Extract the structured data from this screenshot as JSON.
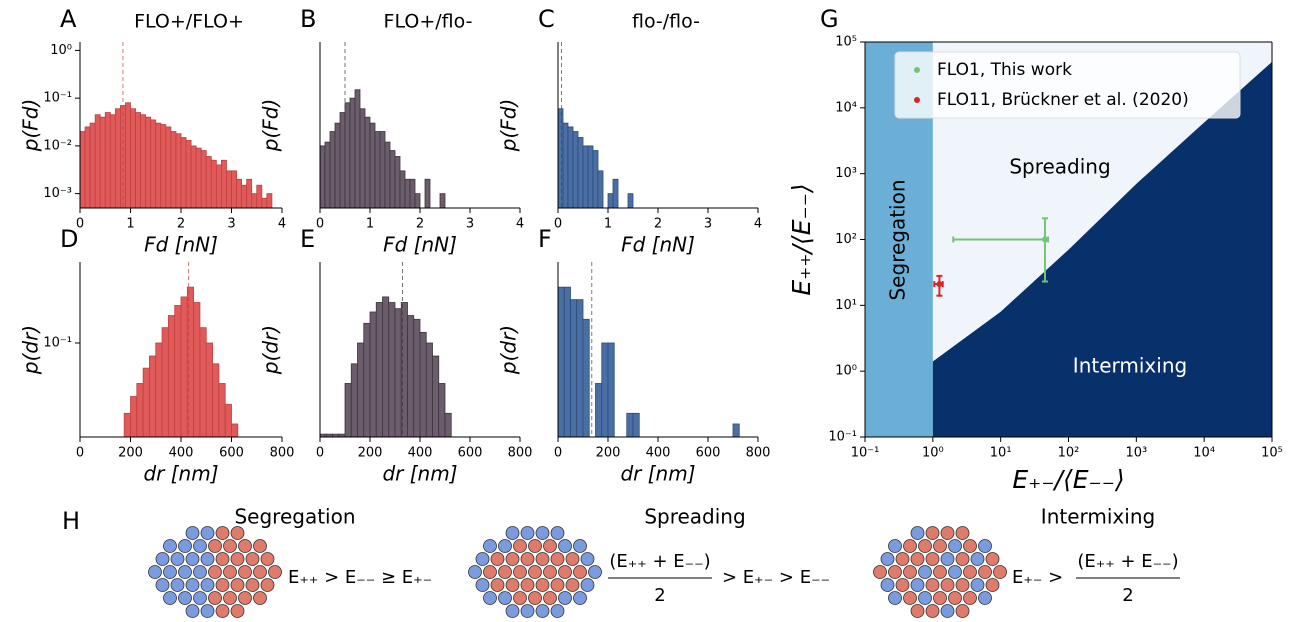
{
  "chart_data": [
    {
      "type": "histogram",
      "panel_label": "A",
      "title": "FLO+/FLO+",
      "xlabel": "Fd [nN]",
      "ylabel": "p(Fd)",
      "color": "#e05a5a",
      "edge": "#c04040",
      "log_y": true,
      "bins": [
        0,
        0.1,
        0.2,
        0.3,
        0.4,
        0.5,
        0.6,
        0.7,
        0.8,
        0.9,
        1,
        1.1,
        1.2,
        1.3,
        1.4,
        1.5,
        1.6,
        1.7,
        1.8,
        1.9,
        2,
        2.1,
        2.2,
        2.3,
        2.4,
        2.5,
        2.6,
        2.7,
        2.8,
        2.9,
        3,
        3.1,
        3.2,
        3.3,
        3.4,
        3.5,
        3.6,
        3.7,
        3.8
      ],
      "values": [
        0.02,
        0.025,
        0.03,
        0.045,
        0.04,
        0.05,
        0.045,
        0.06,
        0.07,
        0.08,
        0.06,
        0.05,
        0.045,
        0.04,
        0.035,
        0.03,
        0.028,
        0.025,
        0.02,
        0.018,
        0.015,
        0.013,
        0.01,
        0.009,
        0.008,
        0.006,
        0.005,
        0.004,
        0.005,
        0.003,
        0.003,
        0.002,
        0.0015,
        0.002,
        0.001,
        0.0015,
        0.0008,
        0.001
      ],
      "reference_line": 0.85,
      "xlim": [
        0,
        4
      ],
      "xticks": [
        0,
        1,
        2,
        3,
        4
      ],
      "ylim": [
        0.0005,
        1.5
      ],
      "yticks": [
        {
          "value": 0.001,
          "label": "10⁻³"
        },
        {
          "value": 0.01,
          "label": "10⁻²"
        },
        {
          "value": 0.1,
          "label": "10⁻¹"
        },
        {
          "value": 1,
          "label": "10⁰"
        }
      ]
    },
    {
      "type": "histogram",
      "panel_label": "B",
      "title": "FLO+/flo-",
      "xlabel": "Fd [nN]",
      "ylabel": "p(Fd)",
      "color": "#6b5d6b",
      "edge": "#3e343e",
      "log_y": true,
      "bins": [
        0,
        0.1,
        0.2,
        0.3,
        0.4,
        0.5,
        0.6,
        0.7,
        0.8,
        0.9,
        1,
        1.1,
        1.2,
        1.3,
        1.4,
        1.5,
        1.6,
        1.7,
        1.8,
        1.9,
        2,
        2.1,
        2.2,
        2.3,
        2.4,
        2.5
      ],
      "values": [
        0.01,
        0.012,
        0.02,
        0.03,
        0.05,
        0.08,
        0.1,
        0.15,
        0.06,
        0.04,
        0.03,
        0.02,
        0.02,
        0.012,
        0.008,
        0.006,
        0.003,
        0.002,
        0.002,
        0.001,
        0,
        0.002,
        0,
        0,
        0.001
      ],
      "reference_line": 0.5,
      "xlim": [
        0,
        4
      ],
      "xticks": [
        0,
        1,
        2,
        3,
        4
      ],
      "ylim": [
        0.0005,
        1.5
      ]
    },
    {
      "type": "histogram",
      "panel_label": "C",
      "title": "flo-/flo-",
      "xlabel": "Fd [nN]",
      "ylabel": "p(Fd)",
      "color": "#4a6fa5",
      "edge": "#2c4a75",
      "log_y": true,
      "bins": [
        0,
        0.1,
        0.2,
        0.3,
        0.4,
        0.5,
        0.6,
        0.7,
        0.8,
        0.9,
        1,
        1.1,
        1.2,
        1.3,
        1.4,
        1.5
      ],
      "values": [
        0.06,
        0.03,
        0.025,
        0.02,
        0.015,
        0.01,
        0.01,
        0.008,
        0.003,
        0,
        0.001,
        0.002,
        0,
        0,
        0.001
      ],
      "reference_line": 0.07,
      "xlim": [
        0,
        4
      ],
      "xticks": [
        0,
        1,
        2,
        3,
        4
      ],
      "ylim": [
        0.0005,
        1.5
      ]
    },
    {
      "type": "histogram",
      "panel_label": "D",
      "xlabel": "dr [nm]",
      "ylabel": "p(dr)",
      "color": "#e05a5a",
      "edge": "#c04040",
      "log_y": true,
      "bins": [
        175,
        200,
        225,
        250,
        275,
        300,
        325,
        350,
        375,
        400,
        425,
        450,
        475,
        500,
        525,
        550,
        575,
        600,
        625
      ],
      "values": [
        0.03,
        0.04,
        0.05,
        0.065,
        0.08,
        0.1,
        0.13,
        0.16,
        0.19,
        0.22,
        0.26,
        0.2,
        0.13,
        0.1,
        0.07,
        0.05,
        0.035,
        0.025
      ],
      "reference_line": 430,
      "xlim": [
        0,
        800
      ],
      "xticks": [
        0,
        200,
        400,
        600,
        800
      ],
      "ylim": [
        0.02,
        0.4
      ],
      "yticks": [
        {
          "value": 0.1,
          "label": "10⁻¹"
        }
      ]
    },
    {
      "type": "histogram",
      "panel_label": "E",
      "xlabel": "dr [nm]",
      "ylabel": "p(dr)",
      "color": "#6b5d6b",
      "edge": "#3e343e",
      "log_y": true,
      "bins": [
        0,
        25,
        50,
        75,
        100,
        125,
        150,
        175,
        200,
        225,
        250,
        275,
        300,
        325,
        350,
        375,
        400,
        425,
        450,
        475,
        500,
        525
      ],
      "values": [
        0.021,
        0.021,
        0.021,
        0.021,
        0.05,
        0.07,
        0.1,
        0.14,
        0.17,
        0.2,
        0.22,
        0.2,
        0.18,
        0.2,
        0.16,
        0.15,
        0.12,
        0.1,
        0.08,
        0.05,
        0.03
      ],
      "reference_line": 330,
      "xlim": [
        0,
        800
      ],
      "xticks": [
        0,
        200,
        400,
        600,
        800
      ],
      "ylim": [
        0.02,
        0.4
      ]
    },
    {
      "type": "histogram",
      "panel_label": "F",
      "xlabel": "dr [nm]",
      "ylabel": "p(dr)",
      "color": "#4a6fa5",
      "edge": "#2c4a75",
      "log_y": true,
      "bins": [
        0,
        25,
        50,
        75,
        100,
        125,
        150,
        175,
        200,
        225,
        250,
        275,
        300,
        325,
        350,
        375,
        400,
        425,
        450,
        475,
        500,
        525,
        550,
        575,
        600,
        625,
        650,
        675,
        700,
        725,
        750
      ],
      "values": [
        0.26,
        0.26,
        0.21,
        0.21,
        0.15,
        0,
        0.05,
        0.1,
        0.1,
        0,
        0,
        0.03,
        0.03,
        0,
        0,
        0,
        0,
        0,
        0,
        0,
        0,
        0,
        0,
        0,
        0,
        0,
        0,
        0,
        0.025,
        0
      ],
      "reference_line": 135,
      "xlim": [
        0,
        800
      ],
      "xticks": [
        0,
        200,
        400,
        600,
        800
      ],
      "ylim": [
        0.02,
        0.4
      ]
    },
    {
      "type": "phase-diagram",
      "panel_label": "G",
      "xlabel": "E₊₋/⟨E₋₋⟩",
      "ylabel": "E₊₊/⟨E₋₋⟩",
      "log_x": true,
      "log_y": true,
      "xlim": [
        0.1,
        100000
      ],
      "ylim": [
        0.1,
        100000
      ],
      "xticks": [
        {
          "value": 0.1,
          "label": "10⁻¹"
        },
        {
          "value": 1,
          "label": "10⁰"
        },
        {
          "value": 10,
          "label": "10¹"
        },
        {
          "value": 100,
          "label": "10²"
        },
        {
          "value": 1000,
          "label": "10³"
        },
        {
          "value": 10000,
          "label": "10⁴"
        },
        {
          "value": 100000,
          "label": "10⁵"
        }
      ],
      "yticks": [
        {
          "value": 0.1,
          "label": "10⁻¹"
        },
        {
          "value": 1,
          "label": "10⁰"
        },
        {
          "value": 10,
          "label": "10¹"
        },
        {
          "value": 100,
          "label": "10²"
        },
        {
          "value": 1000,
          "label": "10³"
        },
        {
          "value": 10000,
          "label": "10⁴"
        },
        {
          "value": 100000,
          "label": "10⁵"
        }
      ],
      "segregation_limit": 1,
      "regions": [
        {
          "name": "Segregation",
          "color": "#6baed6"
        },
        {
          "name": "Spreading",
          "color": "#f0f5fc"
        },
        {
          "name": "Intermixing",
          "color": "#08306b"
        }
      ],
      "boundary": {
        "x": [
          1,
          10,
          100,
          1000,
          10000,
          100000
        ],
        "y": [
          1.4,
          8,
          70,
          700,
          6000,
          50000
        ]
      },
      "legend": "upper left",
      "series": [
        {
          "name": "FLO1, This work",
          "color": "#74c476",
          "x": [
            45
          ],
          "y": [
            100
          ],
          "x_low": [
            2
          ],
          "x_high": [
            50
          ],
          "y_low": [
            23
          ],
          "y_high": [
            210
          ]
        },
        {
          "name": "FLO11, Brückner et al. (2020)",
          "color": "#d62728",
          "x": [
            1.25
          ],
          "y": [
            21
          ],
          "x_low": [
            1.05
          ],
          "x_high": [
            1.4
          ],
          "y_low": [
            14
          ],
          "y_high": [
            28
          ]
        }
      ]
    }
  ],
  "panel_h": {
    "label": "H",
    "items": [
      {
        "title": "Segregation",
        "condition": "E₊₊ > E₋₋ ≥ E₊₋"
      },
      {
        "title": "Spreading",
        "numerator": "(E₊₊ + E₋₋)",
        "denominator": "2",
        "condition": "> E₊₋ > E₋₋"
      },
      {
        "title": "Intermixing",
        "condition": "E₊₋ >",
        "numerator": "(E₊₊ + E₋₋)",
        "denominator": "2"
      }
    ]
  }
}
